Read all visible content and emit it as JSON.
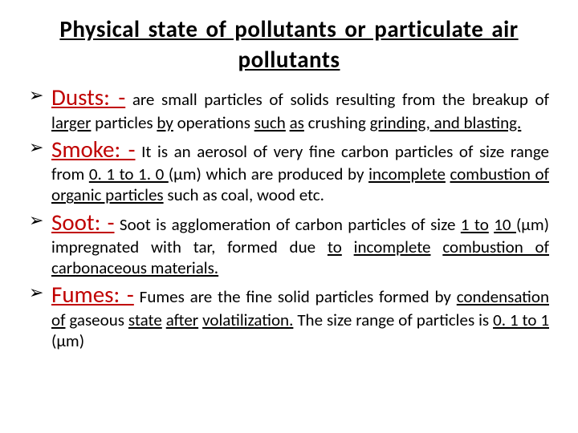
{
  "title": "Physical state of pollutants  or particulate air pollutants",
  "title_fontsize": 29,
  "title_color": "#000000",
  "term_color": "#c00000",
  "body_color": "#000000",
  "body_fontsize": 21,
  "background": "#ffffff",
  "bullets": [
    {
      "term": "Dusts: -",
      "pre": " are small particles of solids resulting from the breakup of ",
      "u1": "larger",
      "mid1": " particles ",
      "u2": "by",
      "mid2": " operations ",
      "u3": "such",
      "mid3": " ",
      "u4": "as",
      "mid4": " crushing ",
      "u5": "grinding, and blasting.",
      "post": ""
    },
    {
      "term": "Smoke: -",
      "pre": " It is an aerosol of very fine carbon particles of size range from ",
      "u1": "0. 1 to 1. 0 ",
      "mid1": "(μm) which are produced by ",
      "u2": "incomplete",
      "mid2": " ",
      "u3": "combustion of organic particles",
      "mid3": " such as coal, wood etc.",
      "u4": "",
      "mid4": "",
      "u5": "",
      "post": ""
    },
    {
      "term": "Soot: -",
      "pre": " Soot is agglomeration of carbon particles of size ",
      "u1": "1 to",
      "mid1": " ",
      "u2": "10 ",
      "mid2": "(μm) impregnated with tar, formed due ",
      "u3": "to",
      "mid3": " ",
      "u4": "incomplete",
      "mid4": " ",
      "u5": "combustion of carbonaceous materials.",
      "post": ""
    },
    {
      "term": "Fumes: -",
      "pre": " Fumes are the fine solid particles formed by ",
      "u1": "condensation of",
      "mid1": " gaseous ",
      "u2": "state",
      "mid2": " ",
      "u3": "after",
      "mid3": " ",
      "u4": "volatilization.",
      "mid4": " The size range of particles is ",
      "u5": "0. 1 to 1 ",
      "post": "(μm)"
    }
  ]
}
